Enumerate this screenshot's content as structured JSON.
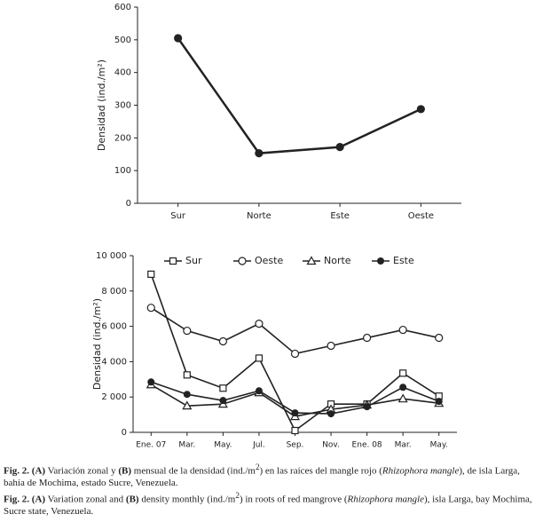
{
  "chart_data": [
    {
      "type": "line",
      "ylabel": "Densidad (ind./m²)",
      "categories": [
        "Sur",
        "Norte",
        "Este",
        "Oeste"
      ],
      "series": [
        {
          "name": "Densidad",
          "color": "#222222",
          "marker": "circle",
          "values": [
            505,
            153,
            172,
            288
          ]
        }
      ],
      "ylim": [
        0,
        600
      ],
      "yticks": [
        0,
        100,
        200,
        300,
        400,
        500,
        600
      ],
      "grid": false,
      "legend": false
    },
    {
      "type": "line",
      "ylabel": "Densidad (ind./m²)",
      "categories": [
        "Ene. 07",
        "Mar.",
        "May.",
        "Jul.",
        "Sep.",
        "Nov.",
        "Ene. 08",
        "Mar.",
        "May."
      ],
      "series": [
        {
          "name": "Sur",
          "color": "#222222",
          "marker": "square",
          "values": [
            8950,
            3250,
            2500,
            4200,
            100,
            1600,
            1600,
            3350,
            2050
          ]
        },
        {
          "name": "Oeste",
          "color": "#222222",
          "marker": "circle-open",
          "values": [
            7050,
            5750,
            5150,
            6150,
            4450,
            4900,
            5350,
            5800,
            5350
          ]
        },
        {
          "name": "Norte",
          "color": "#222222",
          "marker": "triangle",
          "values": [
            2700,
            1500,
            1600,
            2250,
            900,
            1300,
            1550,
            1900,
            1650
          ]
        },
        {
          "name": "Este",
          "color": "#222222",
          "marker": "circle",
          "values": [
            2850,
            2150,
            1800,
            2350,
            1100,
            1050,
            1450,
            2550,
            1750
          ]
        }
      ],
      "ylim": [
        0,
        10000
      ],
      "yticks": [
        0,
        {
          "value": 2000,
          "label": "2 000"
        },
        {
          "value": 4000,
          "label": "4 000"
        },
        {
          "value": 6000,
          "label": "6 000"
        },
        {
          "value": 8000,
          "label": "8 000"
        },
        {
          "value": 10000,
          "label": "10 000"
        }
      ],
      "grid": false,
      "legend": "top"
    }
  ],
  "caption": {
    "es": [
      "Fig. 2.",
      "(A)",
      "Variación zonal y",
      "(B)",
      "mensual de la densidad (ind./m",
      "2",
      ") en las raíces del mangle rojo (",
      "Rhizophora mangle",
      "), de isla Larga, bahía de Mochima, estado Sucre, Venezuela."
    ],
    "en": [
      "Fig. 2.",
      "(A)",
      "Variation zonal and",
      "(B)",
      "density monthly (ind./m",
      "2",
      ") in roots of red mangrove (",
      "Rhizophora mangle",
      "), isla Larga, bay Mochima, Sucre state, Venezuela."
    ]
  }
}
